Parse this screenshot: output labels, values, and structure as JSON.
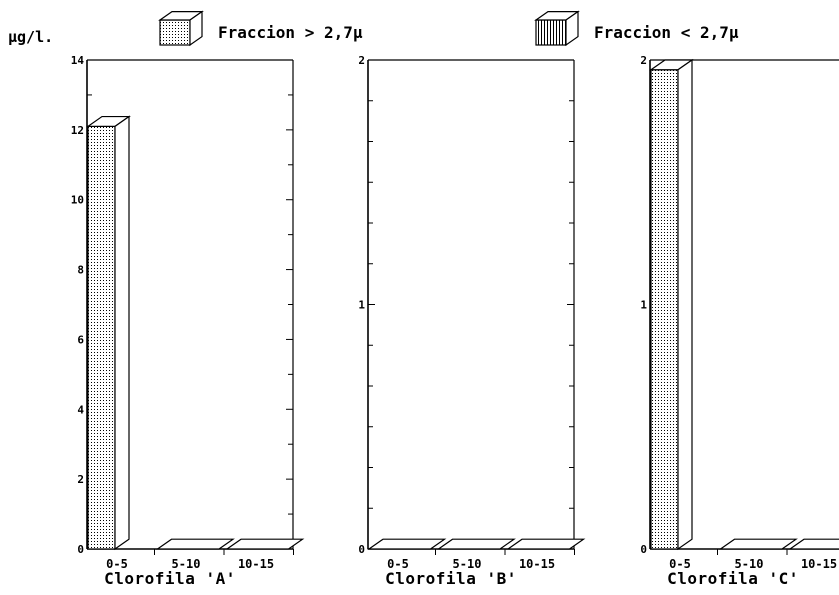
{
  "chart_data": {
    "type": "bar",
    "y_unit_label": "μg/l.",
    "legend": {
      "entries": [
        {
          "label": "Fraccion > 2,7μ",
          "pattern": "dots"
        },
        {
          "label": "Fraccion < 2,7μ",
          "pattern": "vertical-lines"
        }
      ],
      "placement": "top"
    },
    "categories": [
      "0-5",
      "5-10",
      "10-15"
    ],
    "panels": [
      {
        "title": "Clorofila 'A'",
        "ylim": [
          0,
          14
        ],
        "yticks": [
          0,
          2,
          4,
          6,
          8,
          10,
          12,
          14
        ],
        "series": [
          {
            "name": "Fraccion > 2,7μ",
            "values": [
              12.1,
              0,
              0
            ]
          },
          {
            "name": "Fraccion < 2,7μ",
            "values": [
              0,
              0,
              0
            ]
          }
        ]
      },
      {
        "title": "Clorofila 'B'",
        "ylim": [
          0,
          2
        ],
        "yticks": [
          0,
          1,
          2
        ],
        "series": [
          {
            "name": "Fraccion > 2,7μ",
            "values": [
              0,
              0,
              0
            ]
          },
          {
            "name": "Fraccion < 2,7μ",
            "values": [
              0,
              0,
              0
            ]
          }
        ]
      },
      {
        "title": "Clorofila 'C'",
        "ylim": [
          0,
          2
        ],
        "yticks": [
          0,
          1,
          2
        ],
        "series": [
          {
            "name": "Fraccion > 2,7μ",
            "values": [
              1.96,
              0,
              0
            ]
          },
          {
            "name": "Fraccion < 2,7μ",
            "values": [
              0,
              0,
              0
            ]
          }
        ]
      }
    ],
    "grid": false,
    "colors": {
      "ink": "#000000",
      "background": "#ffffff"
    }
  }
}
